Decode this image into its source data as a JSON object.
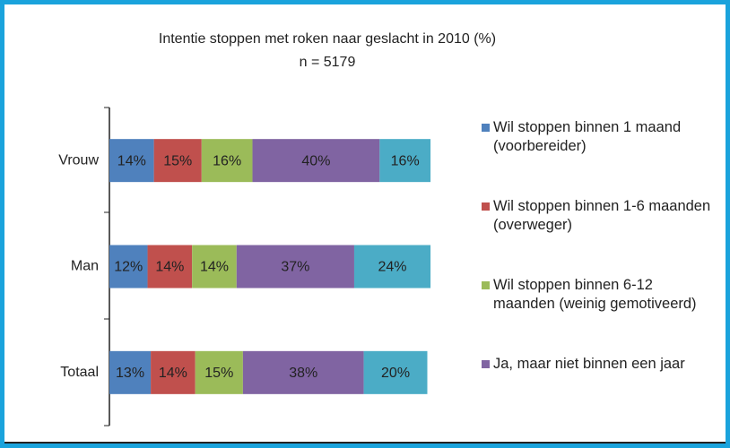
{
  "chart_data": {
    "type": "stacked_bar_horizontal",
    "title": "Intentie stoppen met roken naar geslacht in 2010 (%)",
    "subtitle": "n = 5179",
    "categories": [
      "Vrouw",
      "Man",
      "Totaal"
    ],
    "series": [
      {
        "name": "Wil stoppen binnen 1 maand (voorbereider)",
        "color": "#4f81bd",
        "values": [
          14,
          12,
          13
        ],
        "value_labels": [
          "14%",
          "12%",
          "13%"
        ]
      },
      {
        "name": "Wil stoppen binnen 1-6 maanden (overweger)",
        "color": "#c0504d",
        "values": [
          15,
          14,
          14
        ],
        "value_labels": [
          "15%",
          "14%",
          "14%"
        ]
      },
      {
        "name": "Wil stoppen binnen 6-12 maanden (weinig gemotiveerd)",
        "color": "#9bbb59",
        "values": [
          16,
          14,
          15
        ],
        "value_labels": [
          "16%",
          "14%",
          "15%"
        ]
      },
      {
        "name": "Ja, maar niet binnen een jaar",
        "color": "#8064a2",
        "values": [
          40,
          37,
          38
        ],
        "value_labels": [
          "40%",
          "37%",
          "38%"
        ]
      },
      {
        "color": "#4bacc6",
        "values": [
          16,
          24,
          20
        ],
        "value_labels": [
          "16%",
          "24%",
          "20%"
        ]
      }
    ]
  }
}
